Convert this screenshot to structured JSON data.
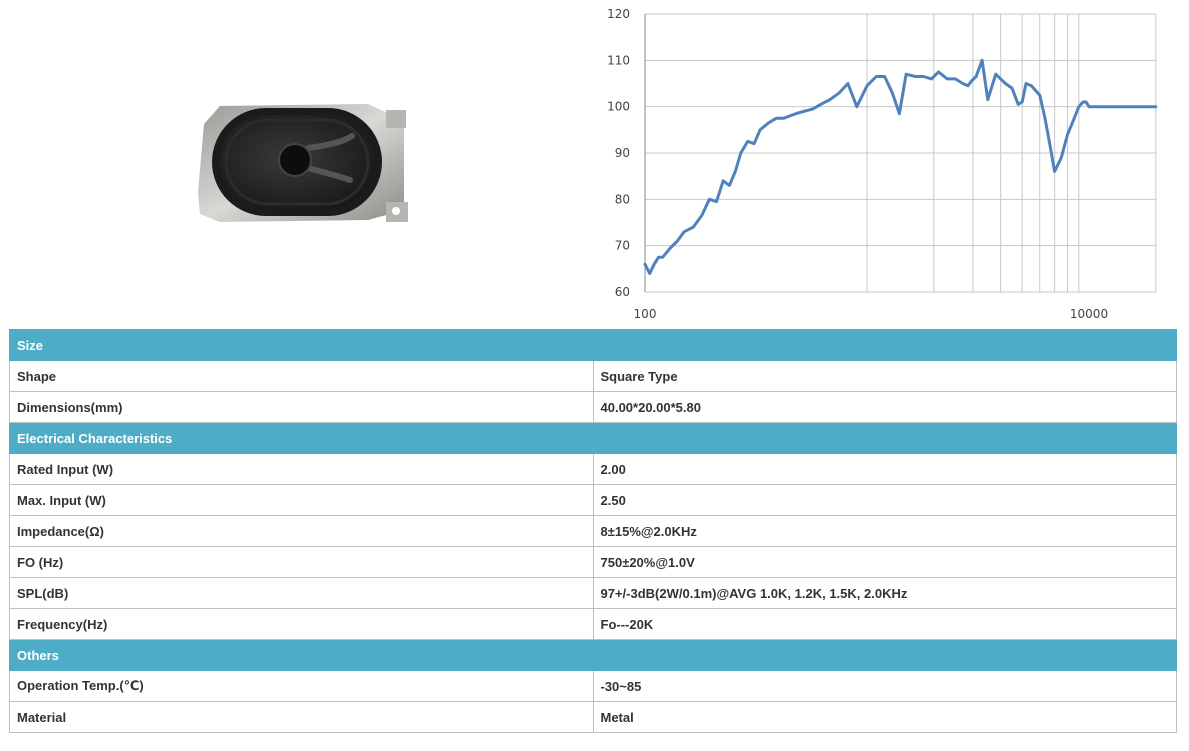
{
  "colors": {
    "curve": "#4f81bd",
    "section_header": "#4facc6",
    "grid": "#c8c8c8"
  },
  "chart_data": {
    "type": "line",
    "title": "",
    "xlabel": "",
    "ylabel": "",
    "x_scale": "log",
    "xlim": [
      100,
      20000
    ],
    "ylim": [
      60,
      120
    ],
    "yticks": [
      "60",
      "70",
      "80",
      "90",
      "100",
      "110",
      "120"
    ],
    "xticks": [
      "100",
      "10000"
    ],
    "grid": true,
    "series": [
      {
        "x": [
          100,
          105,
          110,
          115,
          120,
          130,
          140,
          150,
          165,
          180,
          195,
          210,
          225,
          240,
          255,
          270,
          290,
          310,
          330,
          360,
          390,
          420,
          450,
          480,
          520,
          570,
          620,
          680,
          750,
          820,
          900,
          1000,
          1100,
          1200,
          1300,
          1400,
          1500,
          1650,
          1800,
          1950,
          2100,
          2300,
          2500,
          2700,
          2850,
          2950,
          3100,
          3300,
          3500,
          3800,
          4200,
          4500,
          4800,
          5000,
          5200,
          5500,
          6000,
          6300,
          6600,
          7000,
          7500,
          8000,
          8500,
          9000,
          9400,
          9700,
          10000,
          10500,
          11000,
          11500,
          12000,
          12500,
          13000,
          13500,
          14000,
          15000,
          16000,
          17000,
          18000,
          19000,
          20000
        ],
        "y": [
          66,
          64,
          66,
          67.5,
          67.5,
          69.5,
          71,
          73,
          74,
          76.5,
          80,
          79.5,
          84,
          83,
          86,
          90,
          92.5,
          92,
          95,
          96.5,
          97.5,
          97.5,
          98,
          98.5,
          99,
          99.5,
          100.5,
          101.5,
          103,
          105,
          100,
          104.5,
          106.5,
          106.5,
          103,
          98.5,
          107,
          106.5,
          106.5,
          106,
          107.5,
          106,
          106,
          105,
          104.5,
          105.5,
          106.5,
          110,
          101.5,
          107,
          105,
          104,
          100.5,
          101,
          105,
          104.5,
          102.5,
          98,
          93,
          86,
          89,
          94,
          97,
          100,
          101,
          101,
          100,
          100,
          100,
          100,
          100,
          100,
          100,
          100,
          100,
          100,
          100,
          100,
          100,
          100,
          100
        ]
      }
    ]
  },
  "specs": {
    "size_title": "Size",
    "shape_label": "Shape",
    "shape_value": "Square Type",
    "dimensions_label": "Dimensions(mm)",
    "dimensions_value": "40.00*20.00*5.80",
    "electrical_title": "Electrical Characteristics",
    "rated_input_label": "Rated Input (W)",
    "rated_input_value": "2.00",
    "max_input_label": "Max. Input (W)",
    "max_input_value": "2.50",
    "impedance_label": "Impedance(Ω)",
    "impedance_value": "8±15%@2.0KHz",
    "fo_label": "FO (Hz)",
    "fo_value": "750±20%@1.0V",
    "spl_label": "SPL(dB)",
    "spl_value": "97+/-3dB(2W/0.1m)@AVG 1.0K, 1.2K, 1.5K,  2.0KHz",
    "frequency_label": "Frequency(Hz)",
    "frequency_value": "Fo---20K",
    "others_title": "Others",
    "operation_temp_label": "Operation Temp.(℃)",
    "operation_temp_value": "-30~85",
    "material_label": "Material",
    "material_value": "Metal"
  }
}
